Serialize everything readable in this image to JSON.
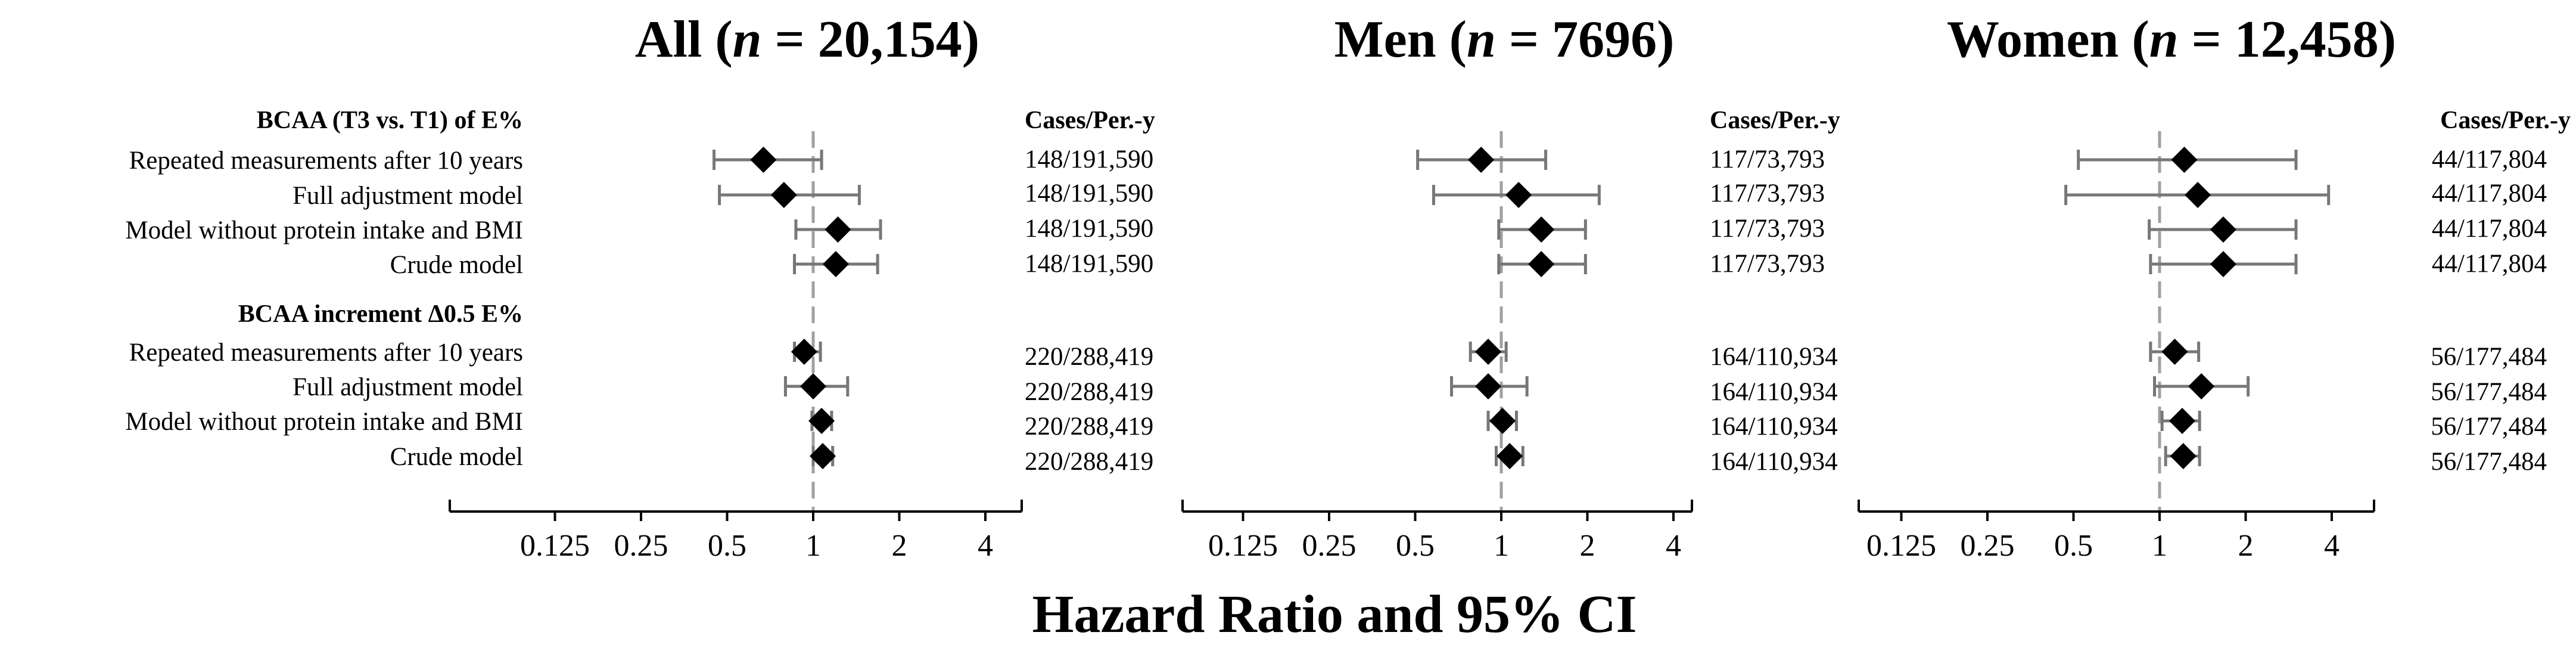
{
  "chart_data": {
    "type": "forest",
    "xlabel": "Hazard Ratio and 95% CI",
    "xscale": "log2",
    "xlim": [
      0.0625,
      5.6
    ],
    "xticks": [
      0.125,
      0.25,
      0.5,
      1,
      2,
      4
    ],
    "xtick_labels": [
      "0.125",
      "0.25",
      "0.5",
      "1",
      "2",
      "4"
    ],
    "reference_line": 1,
    "cases_header": "Cases/Per.-y",
    "groups": [
      {
        "heading": "BCAA (T3 vs. T1) of E%",
        "rows": [
          "Repeated measurements after 10 years",
          "Full adjustment model",
          "Model without protein intake and BMI",
          "Crude model"
        ]
      },
      {
        "heading": "BCAA increment Δ0.5 E%",
        "rows": [
          "Repeated measurements after 10 years",
          "Full adjustment model",
          "Model without protein intake and BMI",
          "Crude model"
        ]
      }
    ],
    "panels": [
      {
        "title_prefix": "All (",
        "title_n": "n",
        "title_suffix": " = 20,154)",
        "cases": [
          [
            "148/191,590",
            "148/191,590",
            "148/191,590",
            "148/191,590"
          ],
          [
            "220/288,419",
            "220/288,419",
            "220/288,419",
            "220/288,419"
          ]
        ],
        "estimates": [
          [
            {
              "hr": 0.67,
              "lo": 0.45,
              "hi": 1.07
            },
            {
              "hr": 0.79,
              "lo": 0.47,
              "hi": 1.45
            },
            {
              "hr": 1.22,
              "lo": 0.87,
              "hi": 1.72
            },
            {
              "hr": 1.2,
              "lo": 0.86,
              "hi": 1.68
            }
          ],
          [
            {
              "hr": 0.93,
              "lo": 0.86,
              "hi": 1.06
            },
            {
              "hr": 1.0,
              "lo": 0.8,
              "hi": 1.32
            },
            {
              "hr": 1.07,
              "lo": 0.99,
              "hi": 1.16
            },
            {
              "hr": 1.08,
              "lo": 1.0,
              "hi": 1.17
            }
          ]
        ]
      },
      {
        "title_prefix": "Men (",
        "title_n": "n",
        "title_suffix": " = 7696)",
        "cases": [
          [
            "117/73,793",
            "117/73,793",
            "117/73,793",
            "117/73,793"
          ],
          [
            "164/110,934",
            "164/110,934",
            "164/110,934",
            "164/110,934"
          ]
        ],
        "estimates": [
          [
            {
              "hr": 0.85,
              "lo": 0.51,
              "hi": 1.43
            },
            {
              "hr": 1.15,
              "lo": 0.58,
              "hi": 2.2
            },
            {
              "hr": 1.38,
              "lo": 0.98,
              "hi": 1.97
            },
            {
              "hr": 1.38,
              "lo": 0.98,
              "hi": 1.97
            }
          ],
          [
            {
              "hr": 0.9,
              "lo": 0.78,
              "hi": 1.04
            },
            {
              "hr": 0.9,
              "lo": 0.67,
              "hi": 1.23
            },
            {
              "hr": 1.01,
              "lo": 0.9,
              "hi": 1.13
            },
            {
              "hr": 1.07,
              "lo": 0.96,
              "hi": 1.19
            }
          ]
        ]
      },
      {
        "title_prefix": "Women (",
        "title_n": "n",
        "title_suffix": " = 12,458)",
        "cases": [
          [
            "44/117,804",
            "44/117,804",
            "44/117,804",
            "44/117,804"
          ],
          [
            "56/177,484",
            "56/177,484",
            "56/177,484",
            "56/177,484"
          ]
        ],
        "estimates": [
          [
            {
              "hr": 1.22,
              "lo": 0.52,
              "hi": 3.0
            },
            {
              "hr": 1.36,
              "lo": 0.47,
              "hi": 3.9
            },
            {
              "hr": 1.67,
              "lo": 0.92,
              "hi": 3.0
            },
            {
              "hr": 1.67,
              "lo": 0.93,
              "hi": 3.0
            }
          ],
          [
            {
              "hr": 1.13,
              "lo": 0.93,
              "hi": 1.37
            },
            {
              "hr": 1.4,
              "lo": 0.96,
              "hi": 2.04
            },
            {
              "hr": 1.2,
              "lo": 1.02,
              "hi": 1.38
            },
            {
              "hr": 1.21,
              "lo": 1.05,
              "hi": 1.38
            }
          ]
        ]
      }
    ]
  }
}
